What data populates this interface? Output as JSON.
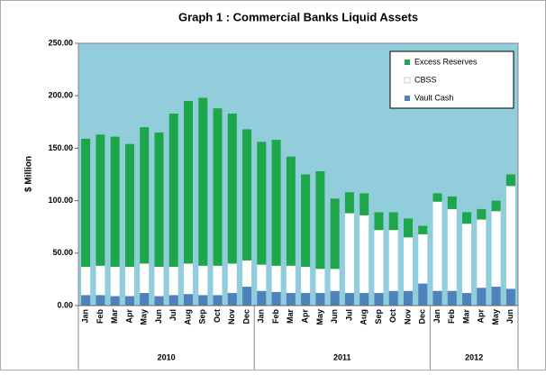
{
  "chart_data": {
    "type": "stacked_bar",
    "title": "Graph  1 : Commercial   Banks  Liquid  Assets",
    "y_label": "$ Million",
    "categories": [
      "Jan",
      "Feb",
      "Mar",
      "Apr",
      "May",
      "Jun",
      "Jul",
      "Aug",
      "Sep",
      "Oct",
      "Nov",
      "Dec",
      "Jan",
      "Feb",
      "Mar",
      "Apr",
      "May",
      "Jun",
      "Jul",
      "Aug",
      "Sep",
      "Oct",
      "Nov",
      "Dec",
      "Jan",
      "Feb",
      "Mar",
      "Apr",
      "May",
      "Jun"
    ],
    "year_groups": [
      {
        "name": "2010",
        "months": 12
      },
      {
        "name": "2011",
        "months": 12
      },
      {
        "name": "2012",
        "months": 6
      }
    ],
    "series": [
      {
        "name": "Excess Reserves",
        "color": "#1ea64b",
        "values": [
          122,
          125,
          124,
          117,
          130,
          128,
          146,
          155,
          160,
          150,
          143,
          125,
          117,
          120,
          104,
          88,
          93,
          67,
          20,
          21,
          17,
          17,
          18,
          8,
          8,
          12,
          11,
          10,
          10,
          11
        ]
      },
      {
        "name": "CBSS",
        "color": "#ffffff",
        "values": [
          27,
          28,
          28,
          28,
          28,
          28,
          27,
          29,
          28,
          28,
          28,
          25,
          25,
          25,
          26,
          25,
          23,
          21,
          76,
          74,
          60,
          58,
          51,
          47,
          85,
          78,
          66,
          65,
          72,
          98
        ]
      },
      {
        "name": "Vault Cash",
        "color": "#4f81bd",
        "values": [
          10,
          10,
          9,
          9,
          12,
          9,
          10,
          11,
          10,
          10,
          12,
          18,
          14,
          13,
          12,
          12,
          12,
          14,
          12,
          12,
          12,
          14,
          14,
          21,
          14,
          14,
          12,
          17,
          18,
          16
        ]
      }
    ],
    "ylim": [
      0,
      250
    ],
    "yticks": [
      {
        "value": 0,
        "label": "0.00"
      },
      {
        "value": 50,
        "label": "50.00"
      },
      {
        "value": 100,
        "label": "100.00"
      },
      {
        "value": 150,
        "label": "150.00"
      },
      {
        "value": 200,
        "label": "200.00"
      },
      {
        "value": 250,
        "label": "250.00"
      }
    ],
    "legend": "top-right",
    "plot_background": "#92cddc"
  }
}
